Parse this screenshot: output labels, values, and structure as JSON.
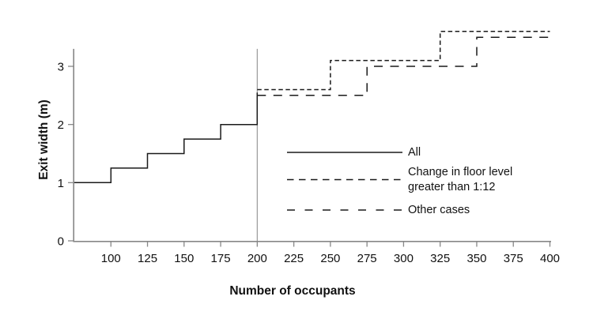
{
  "chart_data": {
    "type": "line",
    "subtype": "step",
    "title": "",
    "xlabel": "Number of occupants",
    "ylabel": "Exit width (m)",
    "xlim": [
      75,
      400
    ],
    "ylim": [
      0,
      3.3
    ],
    "x_ticks": [
      100,
      125,
      150,
      175,
      200,
      225,
      250,
      275,
      300,
      325,
      350,
      375,
      400
    ],
    "y_ticks": [
      0,
      1,
      2,
      3
    ],
    "grid": false,
    "reference_line_x": 200,
    "legend_position": "inside-right",
    "series": [
      {
        "name": "All",
        "style": "solid",
        "points": [
          [
            75,
            1.0
          ],
          [
            100,
            1.0
          ],
          [
            100,
            1.25
          ],
          [
            125,
            1.25
          ],
          [
            125,
            1.5
          ],
          [
            150,
            1.5
          ],
          [
            150,
            1.75
          ],
          [
            175,
            1.75
          ],
          [
            175,
            2.0
          ],
          [
            200,
            2.0
          ],
          [
            200,
            2.55
          ]
        ]
      },
      {
        "name": "Change in floor level greater than 1:12",
        "style": "short-dash",
        "points": [
          [
            200,
            2.6
          ],
          [
            250,
            2.6
          ],
          [
            250,
            3.1
          ],
          [
            325,
            3.1
          ],
          [
            325,
            3.6
          ],
          [
            400,
            3.6
          ]
        ]
      },
      {
        "name": "Other cases",
        "style": "long-dash",
        "points": [
          [
            200,
            2.5
          ],
          [
            275,
            2.5
          ],
          [
            275,
            3.0
          ],
          [
            350,
            3.0
          ],
          [
            350,
            3.5
          ],
          [
            400,
            3.5
          ]
        ]
      }
    ],
    "colors": {
      "line": "#1a1a1a",
      "axis": "#878787",
      "reference_line": "#999999",
      "text": "#111111"
    }
  },
  "legend": {
    "items": [
      {
        "label": "All"
      },
      {
        "label": "Change in floor level\ngreater than 1:12"
      },
      {
        "label": "Other cases"
      }
    ]
  }
}
